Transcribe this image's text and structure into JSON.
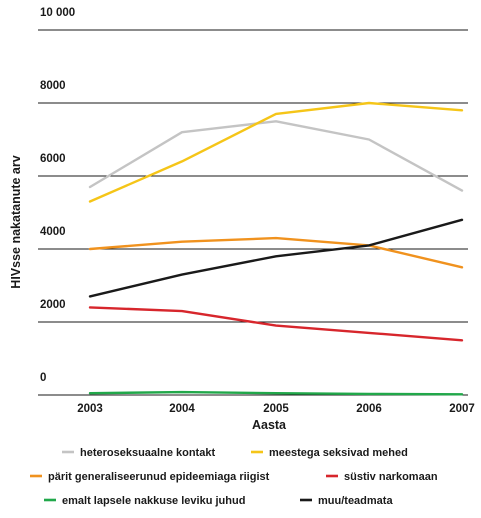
{
  "chart_data": {
    "type": "line",
    "title": "",
    "xlabel": "Aasta",
    "ylabel": "HIVsse nakatanute arv",
    "x": [
      "2003",
      "2004",
      "2005",
      "2006",
      "2007"
    ],
    "ylim": [
      0,
      10000
    ],
    "yticks": [
      0,
      2000,
      4000,
      6000,
      8000,
      10000
    ],
    "ytick_labels": [
      "0",
      "2000",
      "4000",
      "6000",
      "8000",
      "10 000"
    ],
    "grid": "horizontal",
    "legend_position": "bottom",
    "series": [
      {
        "name": "heteroseksuaalne kontakt",
        "color": "#c4c4c4",
        "values": [
          5700,
          7200,
          7500,
          7000,
          5600
        ]
      },
      {
        "name": "meestega seksivad mehed",
        "color": "#f5c518",
        "values": [
          5300,
          6400,
          7700,
          8000,
          7800
        ]
      },
      {
        "name": "pärit generaliseerunud epideemiaga riigist",
        "color": "#f0921e",
        "values": [
          4000,
          4200,
          4300,
          4100,
          3500
        ]
      },
      {
        "name": "süstiv narkomaan",
        "color": "#d7262c",
        "values": [
          2400,
          2300,
          1900,
          1700,
          1500
        ]
      },
      {
        "name": "emalt lapsele nakkuse leviku juhud",
        "color": "#21a84a",
        "values": [
          50,
          80,
          50,
          30,
          20
        ]
      },
      {
        "name": "muu/teadmata",
        "color": "#1a1a1a",
        "values": [
          2700,
          3300,
          3800,
          4100,
          4800
        ]
      }
    ]
  }
}
